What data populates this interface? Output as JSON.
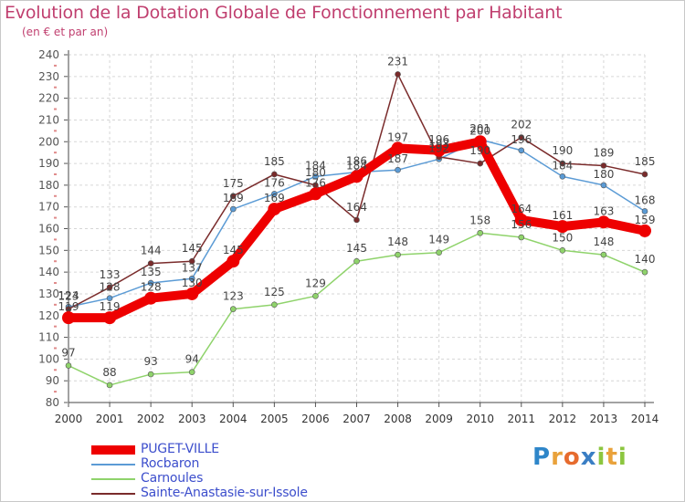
{
  "title": "Evolution de la Dotation Globale de Fonctionnement par Habitant",
  "subtitle": "(en € et par an)",
  "logo": {
    "text": "Proxiti",
    "letters": [
      {
        "ch": "P",
        "color": "#2e86c9"
      },
      {
        "ch": "r",
        "color": "#e9a23b"
      },
      {
        "ch": "o",
        "color": "#e66b2e"
      },
      {
        "ch": "x",
        "color": "#3a7ec4"
      },
      {
        "ch": "i",
        "color": "#8cc63f"
      },
      {
        "ch": "t",
        "color": "#e9a23b"
      },
      {
        "ch": "i",
        "color": "#8cc63f"
      }
    ]
  },
  "chart_data": {
    "type": "line",
    "title": "Evolution de la Dotation Globale de Fonctionnement par Habitant",
    "subtitle": "(en € et par an)",
    "x": [
      2000,
      2001,
      2002,
      2003,
      2004,
      2005,
      2006,
      2007,
      2008,
      2009,
      2010,
      2011,
      2012,
      2013,
      2014
    ],
    "ylim": [
      80,
      240
    ],
    "yticks": [
      80,
      90,
      100,
      110,
      120,
      130,
      140,
      150,
      160,
      170,
      180,
      190,
      200,
      210,
      220,
      230,
      240
    ],
    "grid": "dashed horizontal and vertical",
    "legend_position": "bottom-left",
    "series": [
      {
        "name": "PUGET-VILLE",
        "color": "#ee0000",
        "values": [
          119,
          119,
          128,
          130,
          145,
          169,
          176,
          184,
          197,
          196,
          200,
          164,
          161,
          163,
          159
        ]
      },
      {
        "name": "Rocbaron",
        "color": "#5b9bd5",
        "values": [
          124,
          128,
          135,
          137,
          169,
          176,
          184,
          186,
          187,
          192,
          201,
          196,
          184,
          180,
          168
        ]
      },
      {
        "name": "Carnoules",
        "color": "#8fd36b",
        "values": [
          97,
          88,
          93,
          94,
          123,
          125,
          129,
          145,
          148,
          149,
          158,
          156,
          150,
          148,
          140
        ]
      },
      {
        "name": "Sainte-Anastasie-sur-Issole",
        "color": "#7a2b2b",
        "values": [
          123,
          133,
          144,
          145,
          175,
          185,
          180,
          164,
          231,
          193,
          190,
          202,
          190,
          189,
          185
        ]
      }
    ]
  }
}
